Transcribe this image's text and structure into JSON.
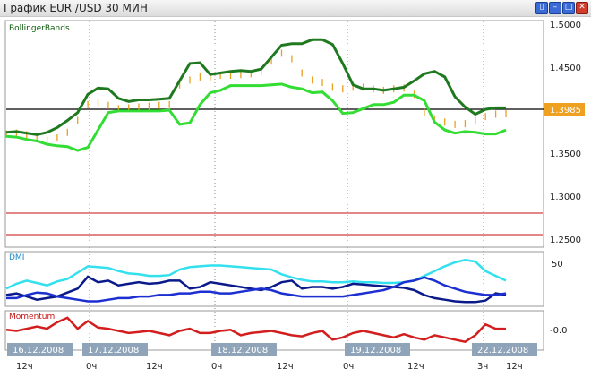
{
  "window": {
    "title": "График EUR /USD  30 МИН",
    "buttons": [
      {
        "name": "restore-button",
        "glyph": "▯"
      },
      {
        "name": "minimize-button",
        "glyph": "–"
      },
      {
        "name": "maximize-button",
        "glyph": "□"
      },
      {
        "name": "close-button",
        "glyph": "✕"
      }
    ]
  },
  "panels": {
    "main": {
      "label": "BollingerBands",
      "y_ticks": [
        "1.5000",
        "1.4500",
        "1.4000",
        "1.3500",
        "1.3000",
        "1.2500"
      ],
      "current_price": "1.3985"
    },
    "dmi": {
      "label": "DMI",
      "y_ticks": [
        "50"
      ]
    },
    "momentum": {
      "label": "Momentum",
      "y_ticks": [
        "-0.0"
      ]
    }
  },
  "x_axis": {
    "date_tags": [
      "16.12.2008",
      "17.12.2008",
      "18.12.2008",
      "19.12.2008",
      "22.12.2008"
    ],
    "hour_labels": [
      "12ч",
      "0ч",
      "12ч",
      "0ч",
      "12ч",
      "0ч",
      "12ч",
      "3ч",
      "12ч"
    ]
  },
  "colors": {
    "upper_band": "#1f7a1f",
    "lower_band": "#33dd33",
    "price_bars": "#e8a020",
    "dmi_cyan": "#33e0ee",
    "dmi_navy": "#0a1a8a",
    "dmi_blue": "#1c2fd0",
    "momentum": "#d21e1e",
    "ref_lines": "#c01010",
    "price_tag": "#f0a020",
    "date_tag": "#8fa4b8"
  },
  "chart_data": {
    "type": "line",
    "price_range": [
      1.23,
      1.515
    ],
    "reference_levels": [
      1.28,
      1.255
    ],
    "current_level": 1.3985,
    "series": [
      {
        "values": [
          1.375,
          1.376,
          1.374,
          1.372,
          1.375,
          1.381,
          1.39,
          1.4,
          1.423,
          1.431,
          1.43,
          1.418,
          1.414,
          1.416,
          1.416,
          1.417,
          1.418,
          1.44,
          1.462,
          1.463,
          1.448,
          1.45,
          1.452,
          1.453,
          1.452,
          1.455,
          1.47,
          1.485,
          1.487,
          1.487,
          1.492,
          1.492,
          1.486,
          1.462,
          1.435,
          1.43,
          1.43,
          1.428,
          1.43,
          1.432,
          1.44,
          1.449,
          1.452,
          1.445,
          1.42,
          1.407,
          1.398,
          1.404,
          1.406,
          1.406
        ]
      },
      {
        "values": [
          1.37,
          1.369,
          1.366,
          1.364,
          1.36,
          1.358,
          1.357,
          1.352,
          1.356,
          1.378,
          1.4,
          1.402,
          1.402,
          1.402,
          1.402,
          1.402,
          1.403,
          1.385,
          1.387,
          1.41,
          1.425,
          1.428,
          1.434,
          1.434,
          1.434,
          1.434,
          1.435,
          1.436,
          1.432,
          1.43,
          1.425,
          1.426,
          1.415,
          1.399,
          1.4,
          1.405,
          1.41,
          1.41,
          1.413,
          1.422,
          1.422,
          1.415,
          1.388,
          1.378,
          1.374,
          1.376,
          1.375,
          1.373,
          1.373,
          1.378
        ]
      },
      {
        "values": [
          1.373,
          1.374,
          1.372,
          1.367,
          1.365,
          1.368,
          1.375,
          1.39,
          1.41,
          1.413,
          1.409,
          1.405,
          1.406,
          1.407,
          1.408,
          1.409,
          1.41,
          1.435,
          1.441,
          1.445,
          1.445,
          1.447,
          1.447,
          1.448,
          1.449,
          1.452,
          1.465,
          1.475,
          1.468,
          1.45,
          1.441,
          1.438,
          1.432,
          1.43,
          1.432,
          1.432,
          1.43,
          1.428,
          1.43,
          1.431,
          1.423,
          1.4,
          1.392,
          1.388,
          1.385,
          1.386,
          1.39,
          1.395,
          1.398,
          1.3985
        ]
      },
      {
        "values": [
          20,
          26,
          30,
          27,
          24,
          29,
          32,
          40,
          48,
          47,
          46,
          42,
          39,
          38,
          36,
          36,
          37,
          44,
          47,
          48,
          49,
          49,
          48,
          47,
          46,
          45,
          44,
          38,
          34,
          31,
          29,
          29,
          28,
          28,
          29,
          28,
          28,
          27,
          27,
          28,
          30,
          36,
          42,
          48,
          53,
          56,
          54,
          42,
          36,
          30
        ]
      },
      {
        "values": [
          12,
          14,
          10,
          6,
          8,
          10,
          15,
          20,
          35,
          28,
          30,
          24,
          26,
          28,
          26,
          27,
          30,
          30,
          20,
          22,
          28,
          26,
          24,
          22,
          20,
          18,
          22,
          28,
          30,
          20,
          22,
          22,
          20,
          22,
          26,
          25,
          24,
          23,
          22,
          21,
          18,
          12,
          8,
          6,
          4,
          3,
          3,
          5,
          14,
          12
        ]
      },
      {
        "values": [
          8,
          8,
          12,
          15,
          14,
          10,
          8,
          6,
          4,
          4,
          6,
          8,
          8,
          10,
          10,
          12,
          12,
          14,
          14,
          16,
          16,
          14,
          14,
          16,
          18,
          20,
          18,
          14,
          12,
          10,
          10,
          10,
          10,
          10,
          12,
          14,
          16,
          18,
          22,
          28,
          30,
          34,
          30,
          24,
          20,
          16,
          14,
          12,
          12,
          14
        ]
      },
      {
        "values": [
          -3,
          -4,
          -2,
          0,
          -2,
          4,
          8,
          -2,
          5,
          -1,
          -2,
          -4,
          -6,
          -5,
          -4,
          -6,
          -8,
          -4,
          -2,
          -6,
          -6,
          -4,
          -3,
          -8,
          -6,
          -5,
          -4,
          -6,
          -8,
          -9,
          -6,
          -4,
          -12,
          -10,
          -6,
          -4,
          -6,
          -8,
          -10,
          -7,
          -10,
          -12,
          -8,
          -10,
          -12,
          -14,
          -8,
          2,
          -2,
          -2
        ]
      }
    ]
  }
}
